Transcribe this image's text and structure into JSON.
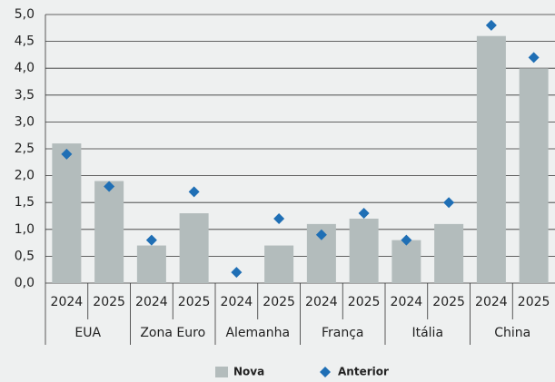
{
  "chart_data": {
    "type": "bar",
    "categories": [
      "2024",
      "2025",
      "2024",
      "2025",
      "2024",
      "2025",
      "2024",
      "2025",
      "2024",
      "2025",
      "2024",
      "2025"
    ],
    "groups": [
      "EUA",
      "Zona Euro",
      "Alemanha",
      "França",
      "Itália",
      "China"
    ],
    "series": [
      {
        "name": "Nova",
        "color": "#b3bcbc",
        "values": [
          2.6,
          1.9,
          0.7,
          1.3,
          null,
          0.7,
          1.1,
          1.2,
          0.8,
          1.1,
          4.6,
          4.0
        ]
      },
      {
        "name": "Anterior",
        "color": "#1f6fb5",
        "marker": "diamond",
        "values": [
          2.4,
          1.8,
          0.8,
          1.7,
          0.2,
          1.2,
          0.9,
          1.3,
          0.8,
          1.5,
          4.8,
          4.2
        ]
      }
    ],
    "ylim": [
      0,
      5
    ],
    "yticks": [
      {
        "value": 0,
        "label": "0,0"
      },
      {
        "value": 0.5,
        "label": "0,5"
      },
      {
        "value": 1,
        "label": "1,0"
      },
      {
        "value": 1.5,
        "label": "1,5"
      },
      {
        "value": 2,
        "label": "2,0"
      },
      {
        "value": 2.5,
        "label": "2,5"
      },
      {
        "value": 3,
        "label": "3,0"
      },
      {
        "value": 3.5,
        "label": "3,5"
      },
      {
        "value": 4,
        "label": "4,0"
      },
      {
        "value": 4.5,
        "label": "4,5"
      },
      {
        "value": 5,
        "label": "5,0"
      }
    ],
    "grid": true
  }
}
